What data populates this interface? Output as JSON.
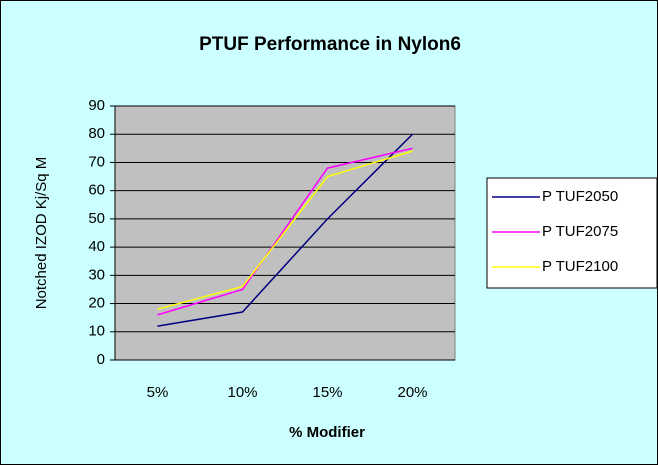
{
  "chart_data": {
    "type": "line",
    "title": "PTUF Performance in Nylon6",
    "x_label": "% Modifier",
    "y_label": "Notched IZOD Kj/Sq M",
    "categories": [
      "5%",
      "10%",
      "15%",
      "20%"
    ],
    "series": [
      {
        "name": "P TUF2050",
        "color": "#000080",
        "values": [
          12,
          17,
          50,
          80
        ]
      },
      {
        "name": "P TUF2075",
        "color": "#ff00ff",
        "values": [
          16,
          25,
          68,
          75
        ]
      },
      {
        "name": "P TUF2100",
        "color": "#ffff00",
        "values": [
          18,
          26,
          65,
          74
        ]
      }
    ],
    "ylim": [
      0,
      90
    ],
    "yticks": [
      0,
      10,
      20,
      30,
      40,
      50,
      60,
      70,
      80,
      90
    ],
    "grid": true,
    "legend": "right"
  }
}
